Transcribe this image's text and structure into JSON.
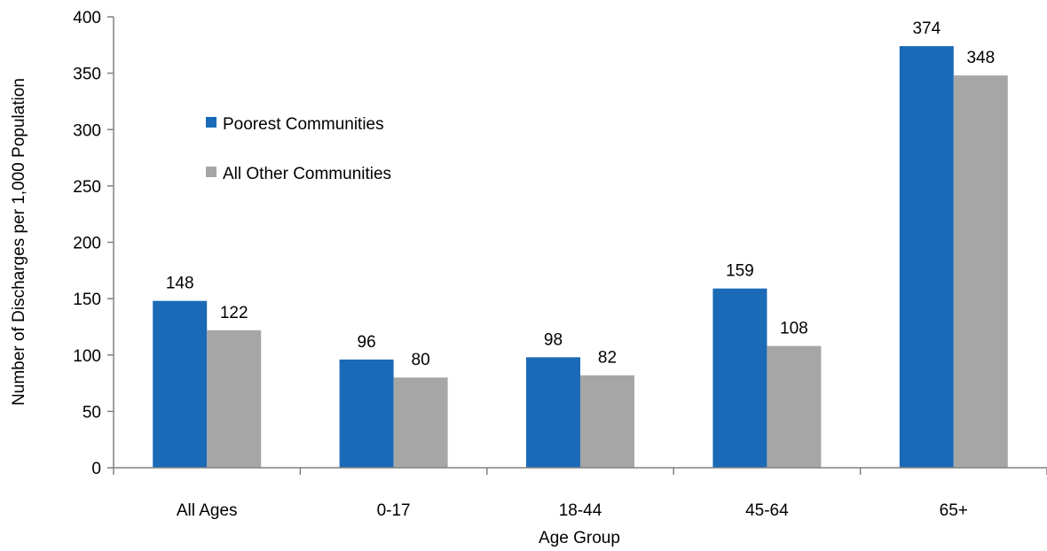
{
  "chart_data": {
    "type": "bar",
    "title": "",
    "xlabel": "Age Group",
    "ylabel": "Number of Discharges per 1,000 Population",
    "categories": [
      "All Ages",
      "0-17",
      "18-44",
      "45-64",
      "65+"
    ],
    "ylim": [
      0,
      400
    ],
    "yticks": [
      0,
      50,
      100,
      150,
      200,
      250,
      300,
      350,
      400
    ],
    "grid": false,
    "legend_position": "upper-left",
    "series": [
      {
        "name": "Poorest Communities",
        "color": "#1a6ab7",
        "values": [
          148,
          96,
          98,
          159,
          374
        ]
      },
      {
        "name": "All Other Communities",
        "color": "#a6a6a6",
        "values": [
          122,
          80,
          82,
          108,
          348
        ]
      }
    ]
  }
}
